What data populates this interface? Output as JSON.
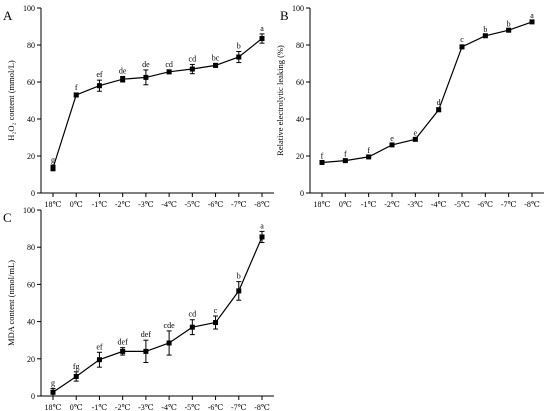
{
  "chart_data": [
    {
      "type": "line",
      "panel": "A",
      "ylabel": "H₂O₂ content (mmol/L)",
      "xlabel": "",
      "categories": [
        "18℃",
        "0℃",
        "-1℃",
        "-2℃",
        "-3℃",
        "-4℃",
        "-5℃",
        "-6℃",
        "-7℃",
        "-8℃"
      ],
      "values": [
        13.5,
        53,
        58,
        61.5,
        62.5,
        65.5,
        67,
        69,
        73.5,
        83.5
      ],
      "errors": [
        1.5,
        1,
        3,
        1.5,
        4,
        1,
        2.5,
        1,
        3,
        2.5
      ],
      "letters": [
        "g",
        "f",
        "ef",
        "de",
        "de",
        "cd",
        "cd",
        "bc",
        "b",
        "a"
      ],
      "ylim": [
        0,
        100
      ],
      "yticks": [
        0,
        20,
        40,
        60,
        80,
        100
      ],
      "grid": false
    },
    {
      "type": "line",
      "panel": "B",
      "ylabel": "Relative electrolytic leaking (%)",
      "xlabel": "",
      "categories": [
        "18℃",
        "0℃",
        "-1℃",
        "-2℃",
        "-3℃",
        "-4℃",
        "-5℃",
        "-6℃",
        "-7℃",
        "-8℃"
      ],
      "values": [
        16.5,
        17.5,
        19.5,
        26,
        29,
        45,
        79,
        85,
        88,
        92.5
      ],
      "errors": [
        0.5,
        0.5,
        0.5,
        0.5,
        0.5,
        1,
        1,
        0.5,
        0.5,
        0.5
      ],
      "letters": [
        "f",
        "f",
        "f",
        "e",
        "e",
        "d",
        "c",
        "b",
        "b",
        "a"
      ],
      "ylim": [
        0,
        100
      ],
      "yticks": [
        0,
        20,
        40,
        60,
        80,
        100
      ],
      "grid": false
    },
    {
      "type": "line",
      "panel": "C",
      "ylabel": "MDA content (nmol/mL)",
      "xlabel": "",
      "categories": [
        "18℃",
        "0℃",
        "-1℃",
        "-2℃",
        "-3℃",
        "-4℃",
        "-5℃",
        "-6℃",
        "-7℃",
        "-8℃"
      ],
      "values": [
        2,
        10.5,
        19.5,
        24,
        24,
        28.5,
        37,
        39.5,
        56.5,
        85.5
      ],
      "errors": [
        2,
        2.5,
        4,
        2,
        6,
        6.5,
        4,
        3.5,
        5,
        3
      ],
      "letters": [
        "g",
        "fg",
        "ef",
        "def",
        "def",
        "cde",
        "cd",
        "c",
        "b",
        "a"
      ],
      "ylim": [
        0,
        100
      ],
      "yticks": [
        0,
        20,
        40,
        60,
        80,
        100
      ],
      "grid": false
    }
  ]
}
